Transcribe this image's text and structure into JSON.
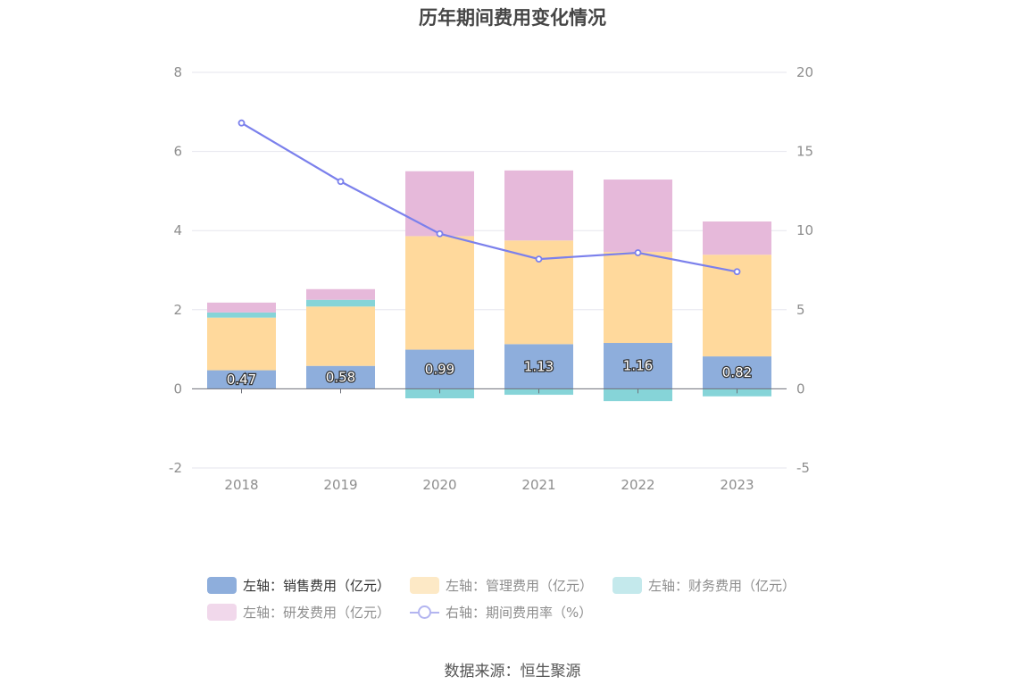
{
  "chart_data": {
    "type": "bar",
    "title": "历年期间费用变化情况",
    "categories": [
      "2018",
      "2019",
      "2020",
      "2021",
      "2022",
      "2023"
    ],
    "stacked": true,
    "y_left": {
      "min": -2,
      "max": 8,
      "ticks": [
        -2,
        0,
        2,
        4,
        6,
        8
      ]
    },
    "y_right": {
      "min": -5,
      "max": 20,
      "ticks": [
        -5,
        0,
        5,
        10,
        15,
        20
      ]
    },
    "series": [
      {
        "name": "左轴：销售费用（亿元）",
        "axis": "left",
        "type": "bar",
        "color": "#8eaedc",
        "values": [
          0.47,
          0.58,
          0.99,
          1.13,
          1.16,
          0.82
        ],
        "show_labels": true
      },
      {
        "name": "左轴：管理费用（亿元）",
        "axis": "left",
        "type": "bar",
        "color": "#ffd99c",
        "values": [
          1.33,
          1.5,
          2.87,
          2.62,
          2.3,
          2.57
        ]
      },
      {
        "name": "左轴：财务费用（亿元）",
        "axis": "left",
        "type": "bar",
        "color": "#86d4d8",
        "values": [
          0.13,
          0.17,
          -0.24,
          -0.15,
          -0.31,
          -0.19
        ]
      },
      {
        "name": "左轴：研发费用（亿元）",
        "axis": "left",
        "type": "bar",
        "color": "#e6b9da",
        "values": [
          0.25,
          0.27,
          1.64,
          1.77,
          1.83,
          0.84
        ]
      },
      {
        "name": "右轴：期间费用率（%）",
        "axis": "right",
        "type": "line",
        "color": "#7b80ec",
        "values": [
          16.8,
          13.1,
          9.8,
          8.2,
          8.6,
          7.4
        ]
      }
    ],
    "legend": {
      "rows": [
        [
          {
            "label": "左轴：销售费用（亿元）",
            "color": "#8eaedc",
            "kind": "bar",
            "active": true
          },
          {
            "label": "左轴：管理费用（亿元）",
            "color": "#fde9c6",
            "kind": "bar",
            "active": false
          },
          {
            "label": "左轴：财务费用（亿元）",
            "color": "#c4e9ec",
            "kind": "bar",
            "active": false
          }
        ],
        [
          {
            "label": "左轴：研发费用（亿元）",
            "color": "#f1d8eb",
            "kind": "bar",
            "active": false
          },
          {
            "label": "右轴：期间费用率（%）",
            "color": "#b3b5f0",
            "kind": "line",
            "active": false
          }
        ]
      ]
    },
    "source": "数据来源：恒生聚源"
  }
}
